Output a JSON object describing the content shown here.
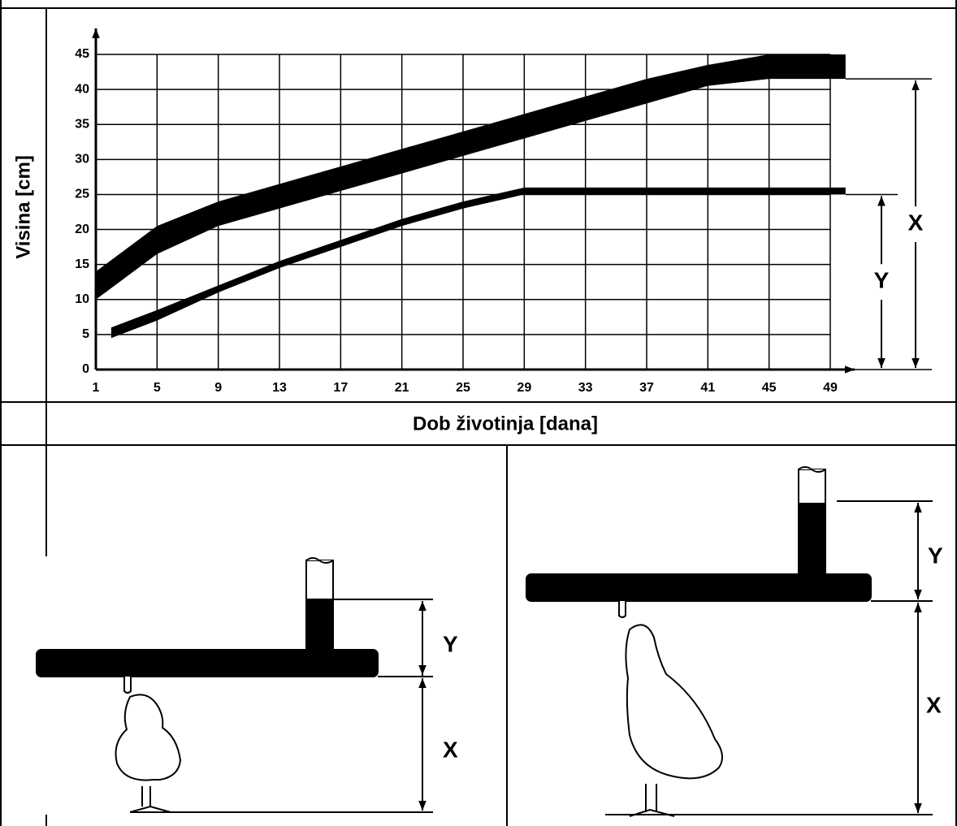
{
  "chart_data": {
    "type": "band",
    "ylabel": "Visina [cm]",
    "xlabel": "Dob životinja [dana]",
    "xlim": [
      1,
      49
    ],
    "ylim": [
      0,
      45
    ],
    "xticks": [
      1,
      5,
      9,
      13,
      17,
      21,
      25,
      29,
      33,
      37,
      41,
      45,
      49
    ],
    "yticks": [
      0,
      5,
      10,
      15,
      20,
      25,
      30,
      35,
      40,
      45
    ],
    "grid": true,
    "series": [
      {
        "name": "X",
        "color": "#000000",
        "x": [
          1,
          5,
          9,
          13,
          17,
          21,
          25,
          29,
          33,
          37,
          41,
          45,
          50
        ],
        "values": [
          14,
          20.5,
          24,
          26.5,
          29,
          31.5,
          34,
          36.5,
          39,
          41.5,
          43.5,
          45,
          45
        ],
        "lower": [
          10,
          16.5,
          20.5,
          23,
          25.5,
          28,
          30.5,
          33,
          35.5,
          38,
          40.5,
          41.5,
          41.5
        ]
      },
      {
        "name": "Y",
        "color": "#000000",
        "x": [
          2,
          5,
          9,
          13,
          17,
          21,
          25,
          29,
          50
        ],
        "values": [
          6,
          8.5,
          12,
          15.5,
          18.5,
          21.5,
          24,
          26,
          26
        ],
        "lower": [
          4.5,
          7,
          11,
          14.5,
          17.5,
          20.5,
          23,
          25,
          25
        ]
      }
    ]
  },
  "illustrations": {
    "chick": {
      "y_label": "Y",
      "x_label": "X"
    },
    "adult": {
      "y_label": "Y",
      "x_label": "X"
    }
  }
}
